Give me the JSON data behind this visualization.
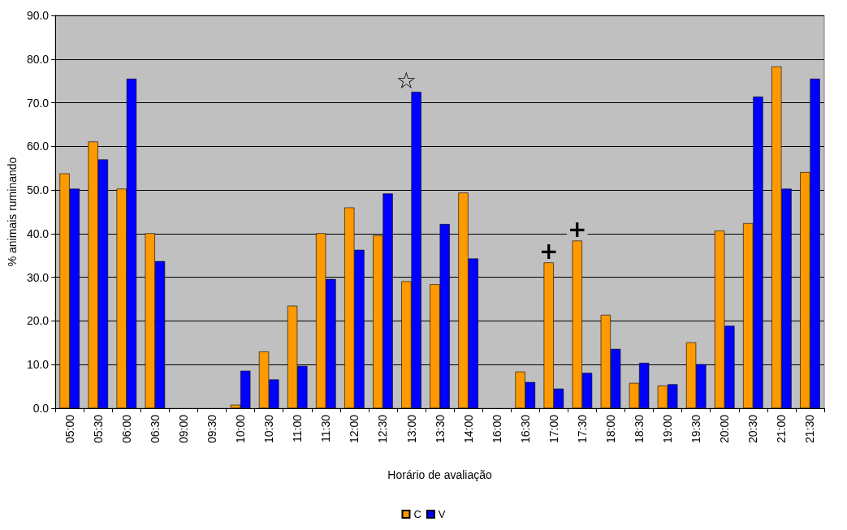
{
  "chart_data": {
    "type": "bar",
    "xlabel": "Horário de avaliação",
    "ylabel": "% animais ruminando",
    "categories": [
      "05:00",
      "05:30",
      "06:00",
      "06:30",
      "09:00",
      "09:30",
      "10:00",
      "10:30",
      "11:00",
      "11:30",
      "12:00",
      "12:30",
      "13:00",
      "13:30",
      "14:00",
      "16:00",
      "16:30",
      "17:00",
      "17:30",
      "18:00",
      "18:30",
      "19:00",
      "19:30",
      "20:00",
      "20:30",
      "21:00",
      "21:30"
    ],
    "series": [
      {
        "name": "C",
        "color": "#ff9900",
        "values": [
          53.8,
          61.1,
          50.3,
          40.1,
          null,
          null,
          0.8,
          13.0,
          23.5,
          40.1,
          46.0,
          39.6,
          29.1,
          28.4,
          49.4,
          null,
          8.4,
          33.4,
          38.4,
          21.4,
          5.8,
          5.2,
          15.1,
          40.7,
          42.4,
          78.3,
          54.1
        ]
      },
      {
        "name": "V",
        "color": "#0000ff",
        "values": [
          50.3,
          57.0,
          75.5,
          33.7,
          null,
          null,
          8.6,
          6.6,
          9.7,
          29.6,
          36.3,
          49.2,
          72.5,
          42.2,
          34.3,
          null,
          6.0,
          4.5,
          8.1,
          13.6,
          10.4,
          5.5,
          10.1,
          18.9,
          71.4,
          50.3,
          75.5
        ]
      }
    ],
    "ylim": [
      0,
      90
    ],
    "yticks": [
      {
        "value": 0,
        "label": "0.0"
      },
      {
        "value": 10,
        "label": "10.0"
      },
      {
        "value": 20,
        "label": "20.0"
      },
      {
        "value": 30,
        "label": "30.0"
      },
      {
        "value": 40,
        "label": "40.0"
      },
      {
        "value": 50,
        "label": "50.0"
      },
      {
        "value": 60,
        "label": "60.0"
      },
      {
        "value": 70,
        "label": "70.0"
      },
      {
        "value": 80,
        "label": "80.0"
      },
      {
        "value": 90,
        "label": "90.0"
      }
    ],
    "grid": "y",
    "legend": "bottom",
    "annotations": [
      {
        "text": "☆",
        "x": "13:00",
        "y": 72.5
      },
      {
        "text": "+",
        "x": "17:00",
        "y": 33.4
      },
      {
        "text": "+",
        "x": "17:30",
        "y": 38.4
      }
    ]
  }
}
